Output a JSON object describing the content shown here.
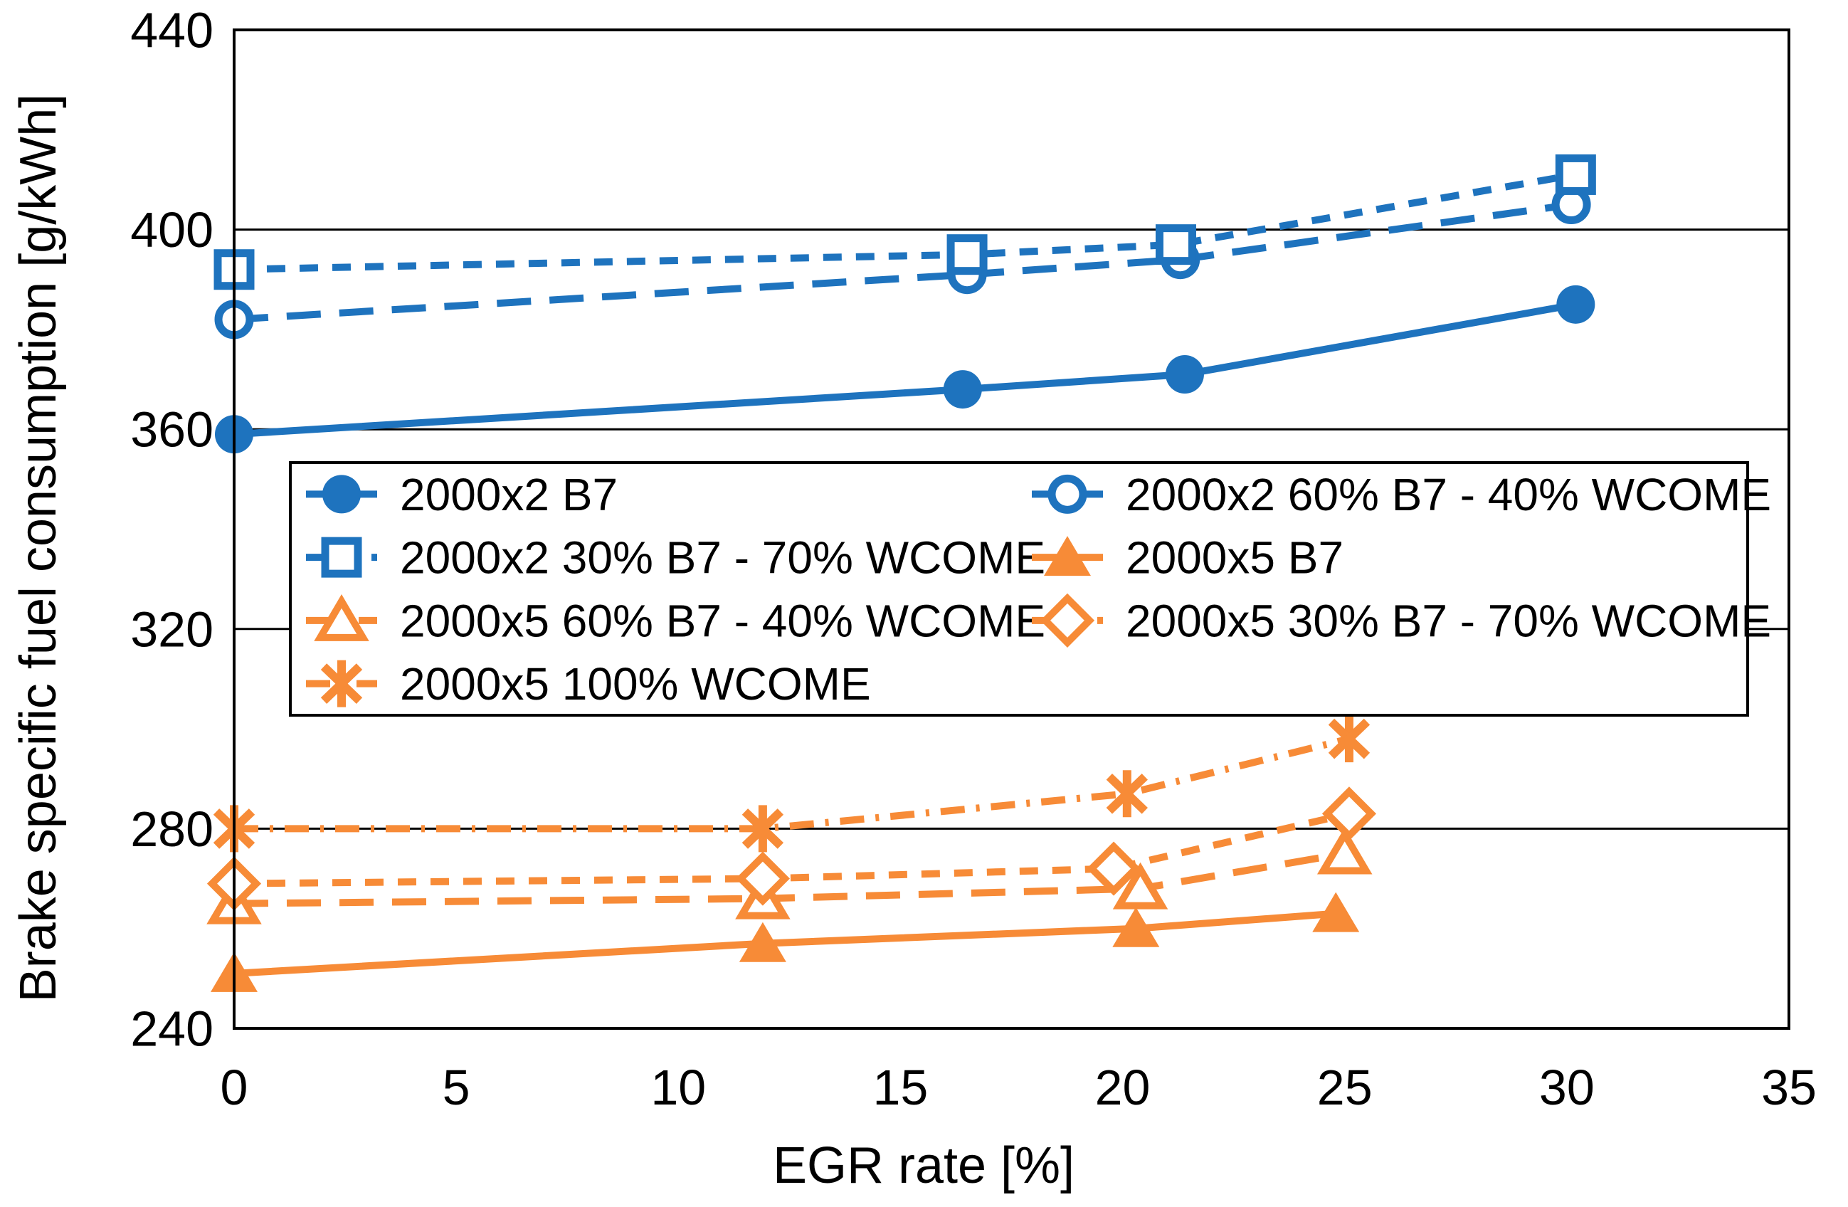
{
  "chart_data": {
    "type": "line",
    "title": "",
    "xlabel": "EGR rate [%]",
    "ylabel": "Brake specific fuel consumption [g/kWh]",
    "xlim": [
      0,
      35
    ],
    "ylim": [
      240,
      440
    ],
    "xticks": [
      0,
      5,
      10,
      15,
      20,
      25,
      30,
      35
    ],
    "yticks": [
      240,
      280,
      320,
      360,
      400,
      440
    ],
    "grid": "horizontal-only",
    "legend_position": "inside-center-left",
    "legend_columns": 2,
    "colors": {
      "blue": "#1E73BE",
      "orange": "#F78B37",
      "axis": "#000000",
      "background": "#FFFFFF"
    },
    "series": [
      {
        "name": "2000x2 B7",
        "color": "blue",
        "marker": "filled-circle",
        "line": "solid",
        "x": [
          0,
          16.4,
          21.4,
          30.2
        ],
        "y": [
          359,
          368,
          371,
          385
        ]
      },
      {
        "name": "2000x2 60% B7 - 40% WCOME",
        "color": "blue",
        "marker": "open-circle",
        "line": "dash-long",
        "x": [
          0,
          16.5,
          21.3,
          30.1
        ],
        "y": [
          382,
          391,
          394,
          405
        ]
      },
      {
        "name": "2000x2 30% B7 - 70% WCOME",
        "color": "blue",
        "marker": "open-square",
        "line": "dash-short",
        "x": [
          0,
          16.5,
          21.2,
          30.2
        ],
        "y": [
          392,
          395,
          397,
          411
        ]
      },
      {
        "name": "2000x5 B7",
        "color": "orange",
        "marker": "filled-triangle",
        "line": "solid",
        "x": [
          0,
          11.9,
          20.3,
          24.8
        ],
        "y": [
          251,
          257,
          260,
          263
        ]
      },
      {
        "name": "2000x5 60% B7 - 40% WCOME",
        "color": "orange",
        "marker": "open-triangle",
        "line": "dash-long",
        "x": [
          0,
          11.9,
          20.4,
          25.0
        ],
        "y": [
          265,
          266,
          268,
          275
        ]
      },
      {
        "name": "2000x5 30% B7 - 70% WCOME",
        "color": "orange",
        "marker": "open-diamond",
        "line": "dash-short",
        "x": [
          0,
          11.9,
          19.8,
          25.1
        ],
        "y": [
          269,
          270,
          272,
          283
        ]
      },
      {
        "name": "2000x5 100% WCOME",
        "color": "orange",
        "marker": "asterisk",
        "line": "dash-dot",
        "x": [
          0,
          11.9,
          20.1,
          25.1
        ],
        "y": [
          280,
          280,
          287,
          298
        ]
      }
    ]
  }
}
